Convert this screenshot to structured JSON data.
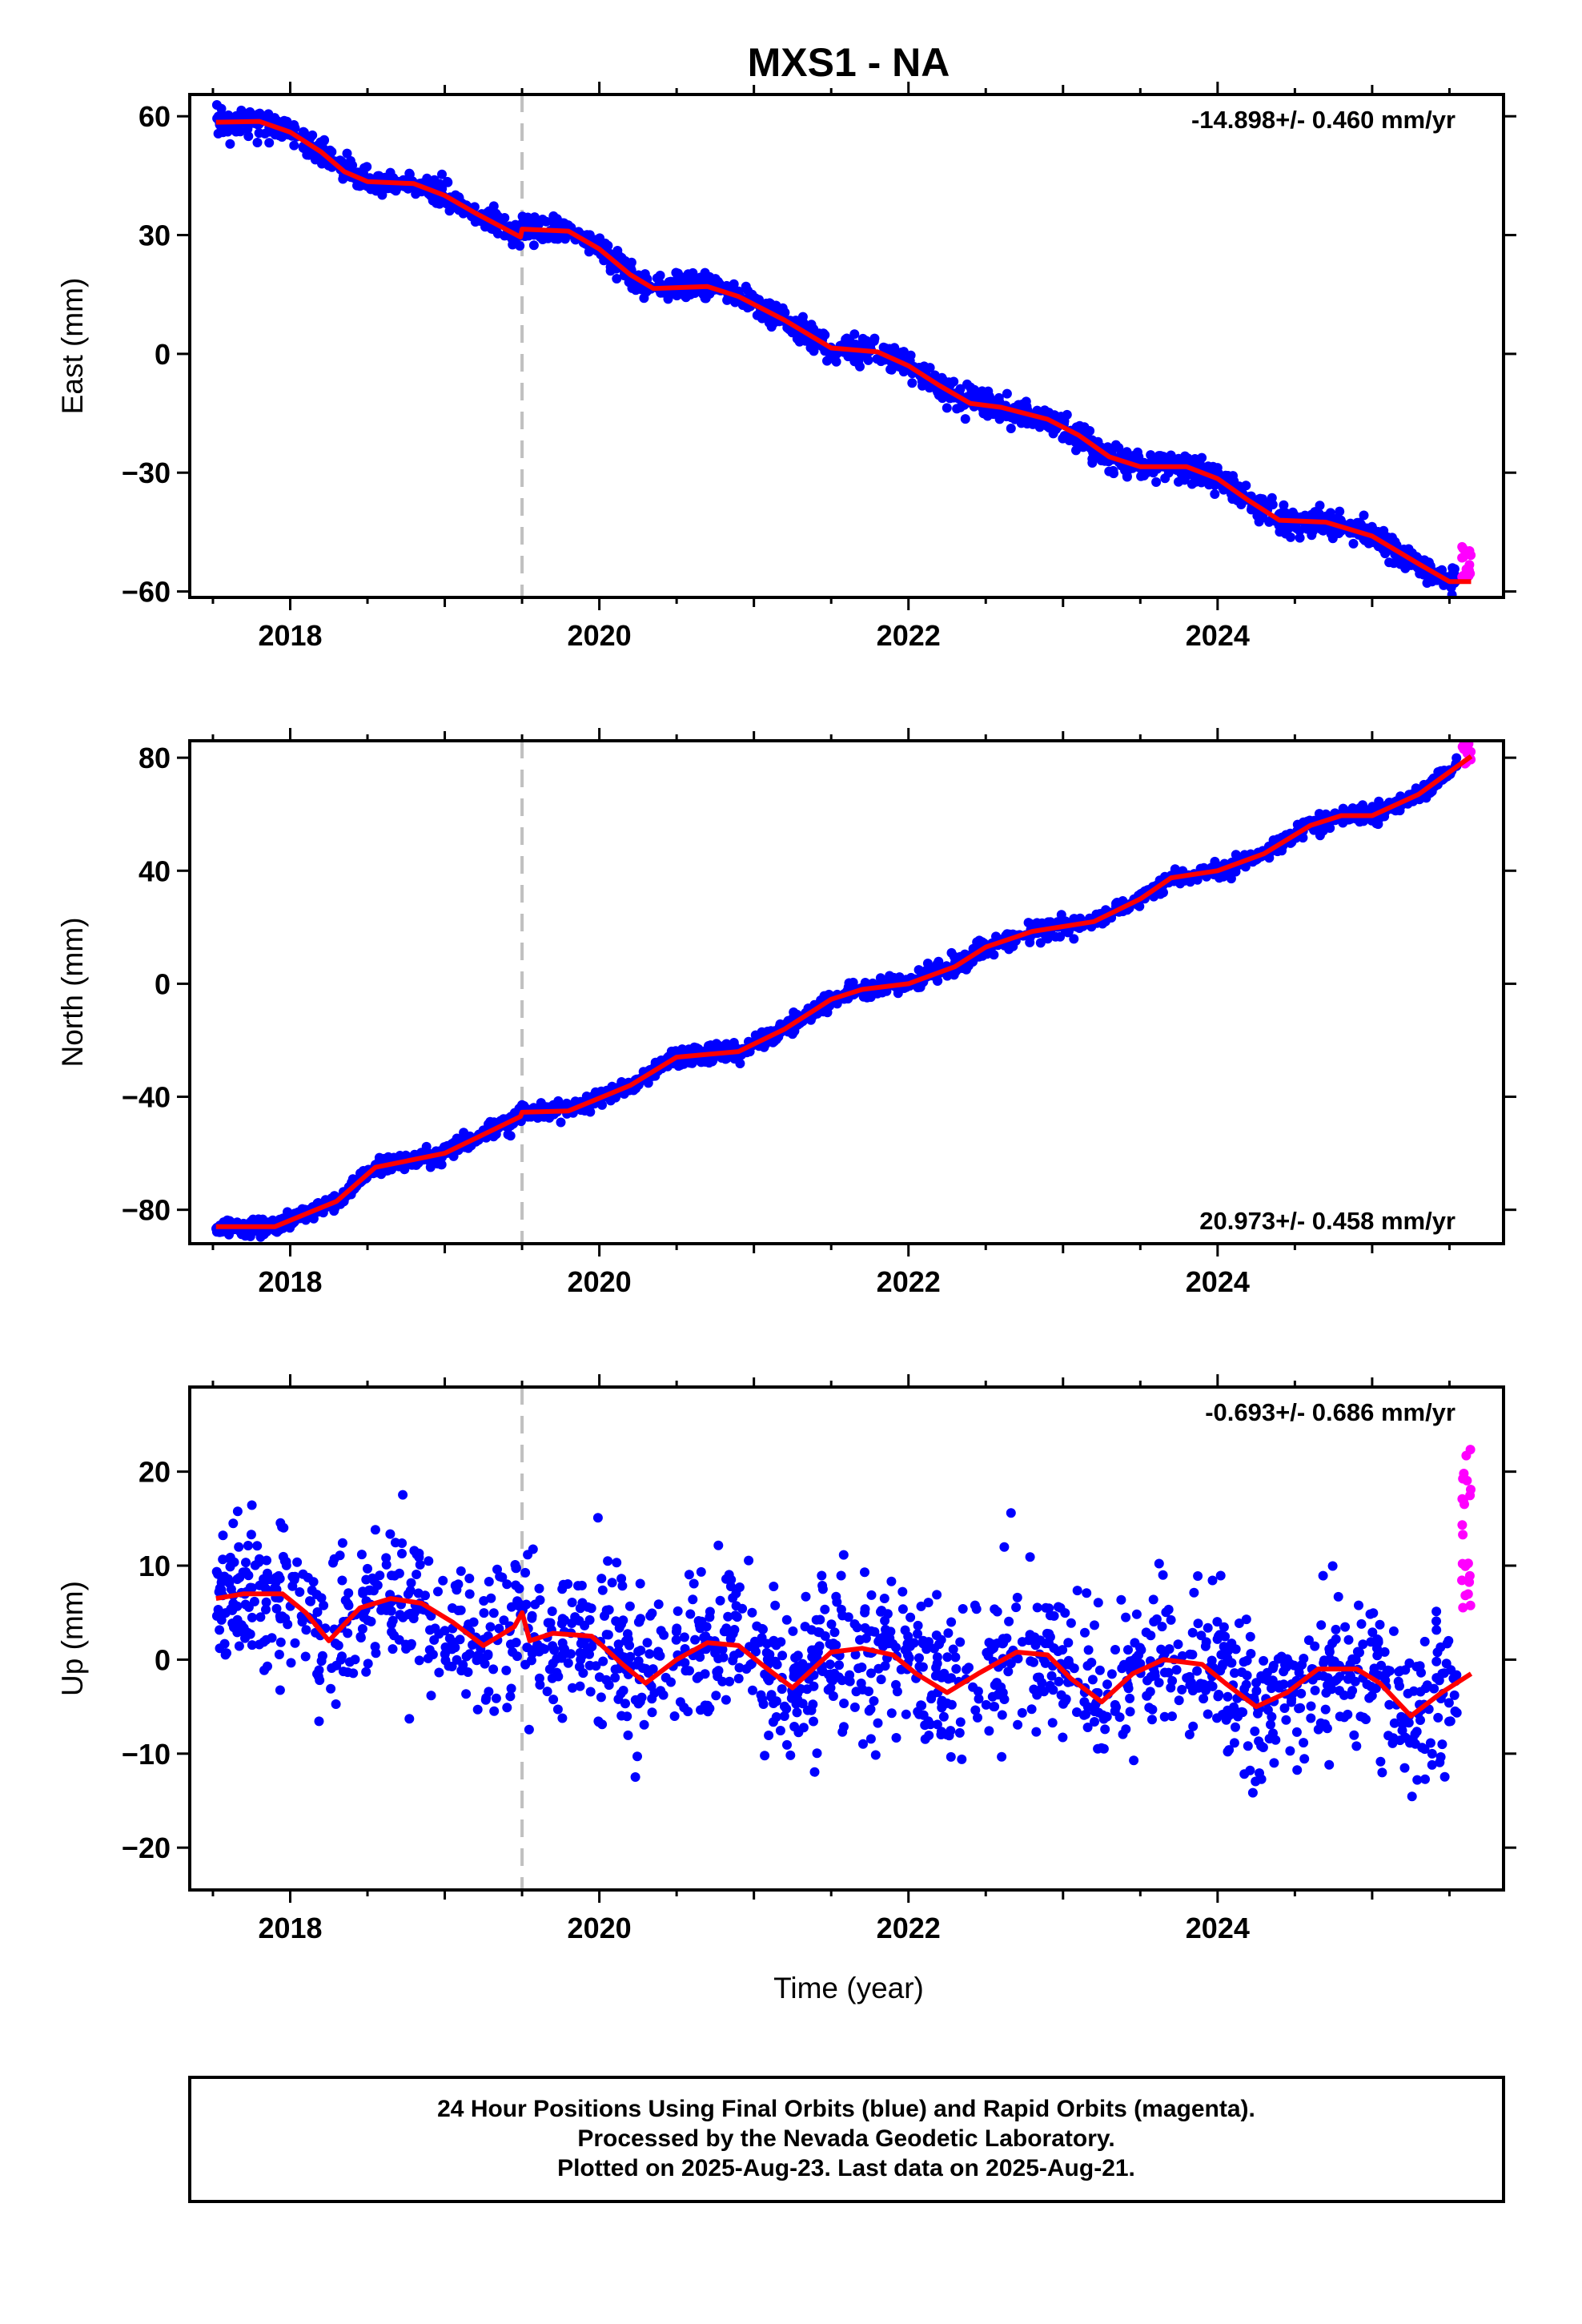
{
  "title": "MXS1 - NA",
  "footer": {
    "line1": "24 Hour Positions Using Final Orbits (blue) and Rapid Orbits (magenta).",
    "line2": "Processed by the Nevada Geodetic Laboratory.",
    "line3": "Plotted on 2025-Aug-23. Last data on 2025-Aug-21."
  },
  "colors": {
    "final": "#0000ff",
    "rapid": "#ff00ff",
    "model": "#ff0000",
    "break": "#c0c0c0",
    "frame": "#000000"
  },
  "xlabel": "Time (year)",
  "chart_data": [
    {
      "type": "scatter",
      "name": "east",
      "ylabel": "East (mm)",
      "rate_text": "-14.898+/- 0.460 mm/yr",
      "rate_position": "top-right",
      "xlim": [
        2017.35,
        2025.85
      ],
      "ylim": [
        -61.5,
        65.5
      ],
      "xticks": [
        2018,
        2020,
        2022,
        2024
      ],
      "yticks": [
        60,
        30,
        0,
        -30,
        -60
      ],
      "ytick_labels": [
        "60",
        "30",
        "0",
        "−30",
        "−60"
      ],
      "equipment_change": 2019.5,
      "data_start": 2017.52,
      "final_end": 2025.55,
      "rapid_start": 2025.58,
      "data_end": 2025.64,
      "model": [
        [
          2017.52,
          58.5
        ],
        [
          2017.8,
          58.7
        ],
        [
          2018.0,
          56.0
        ],
        [
          2018.2,
          51.0
        ],
        [
          2018.35,
          46.0
        ],
        [
          2018.5,
          43.5
        ],
        [
          2018.8,
          43.0
        ],
        [
          2019.0,
          40.0
        ],
        [
          2019.2,
          35.5
        ],
        [
          2019.49,
          29.5
        ],
        [
          2019.5,
          31.5
        ],
        [
          2019.8,
          31.0
        ],
        [
          2020.0,
          26.5
        ],
        [
          2020.2,
          20.0
        ],
        [
          2020.35,
          16.5
        ],
        [
          2020.7,
          17.0
        ],
        [
          2020.9,
          14.5
        ],
        [
          2021.2,
          8.5
        ],
        [
          2021.5,
          1.5
        ],
        [
          2021.8,
          0.5
        ],
        [
          2022.0,
          -3.0
        ],
        [
          2022.2,
          -8.0
        ],
        [
          2022.4,
          -12.5
        ],
        [
          2022.6,
          -13.5
        ],
        [
          2022.9,
          -16.5
        ],
        [
          2023.1,
          -20.5
        ],
        [
          2023.3,
          -26.0
        ],
        [
          2023.5,
          -28.5
        ],
        [
          2023.8,
          -28.5
        ],
        [
          2024.0,
          -31.5
        ],
        [
          2024.2,
          -37.0
        ],
        [
          2024.4,
          -42.0
        ],
        [
          2024.7,
          -42.5
        ],
        [
          2025.0,
          -46.0
        ],
        [
          2025.3,
          -53.0
        ],
        [
          2025.5,
          -57.5
        ],
        [
          2025.64,
          -57.5
        ]
      ],
      "scatter_noise": 1.6
    },
    {
      "type": "scatter",
      "name": "north",
      "ylabel": "North (mm)",
      "rate_text": "20.973+/- 0.458 mm/yr",
      "rate_position": "bottom-right",
      "xlim": [
        2017.35,
        2025.85
      ],
      "ylim": [
        -92,
        86
      ],
      "xticks": [
        2018,
        2020,
        2022,
        2024
      ],
      "yticks": [
        80,
        40,
        0,
        -40,
        -80
      ],
      "ytick_labels": [
        "80",
        "40",
        "0",
        "−40",
        "−80"
      ],
      "equipment_change": 2019.5,
      "data_start": 2017.52,
      "final_end": 2025.55,
      "rapid_start": 2025.58,
      "data_end": 2025.64,
      "model": [
        [
          2017.52,
          -86.0
        ],
        [
          2017.9,
          -86.0
        ],
        [
          2018.3,
          -77.0
        ],
        [
          2018.55,
          -65.0
        ],
        [
          2019.0,
          -60.0
        ],
        [
          2019.49,
          -47.0
        ],
        [
          2019.5,
          -45.5
        ],
        [
          2019.8,
          -45.0
        ],
        [
          2020.2,
          -36.0
        ],
        [
          2020.5,
          -26.0
        ],
        [
          2020.9,
          -24.0
        ],
        [
          2021.2,
          -16.0
        ],
        [
          2021.5,
          -5.5
        ],
        [
          2021.7,
          -2.0
        ],
        [
          2022.0,
          0.0
        ],
        [
          2022.3,
          6.0
        ],
        [
          2022.5,
          13.0
        ],
        [
          2022.8,
          18.5
        ],
        [
          2023.2,
          22.0
        ],
        [
          2023.5,
          30.0
        ],
        [
          2023.7,
          37.5
        ],
        [
          2024.0,
          40.0
        ],
        [
          2024.3,
          46.0
        ],
        [
          2024.6,
          56.0
        ],
        [
          2024.8,
          59.5
        ],
        [
          2025.0,
          59.5
        ],
        [
          2025.3,
          67.0
        ],
        [
          2025.64,
          80.5
        ]
      ],
      "scatter_noise": 1.5
    },
    {
      "type": "scatter",
      "name": "up",
      "ylabel": "Up (mm)",
      "rate_text": "-0.693+/- 0.686 mm/yr",
      "rate_position": "top-right",
      "xlim": [
        2017.35,
        2025.85
      ],
      "ylim": [
        -24.5,
        29.0
      ],
      "xticks": [
        2018,
        2020,
        2022,
        2024
      ],
      "yticks": [
        20,
        10,
        0,
        -10,
        -20
      ],
      "ytick_labels": [
        "20",
        "10",
        "0",
        "−10",
        "−20"
      ],
      "equipment_change": 2019.5,
      "data_start": 2017.52,
      "final_end": 2025.55,
      "rapid_start": 2025.58,
      "data_end": 2025.64,
      "model": [
        [
          2017.52,
          6.5
        ],
        [
          2017.7,
          7.0
        ],
        [
          2017.95,
          7.0
        ],
        [
          2018.1,
          5.0
        ],
        [
          2018.25,
          2.0
        ],
        [
          2018.45,
          5.5
        ],
        [
          2018.65,
          6.5
        ],
        [
          2018.85,
          6.0
        ],
        [
          2019.05,
          4.0
        ],
        [
          2019.25,
          1.5
        ],
        [
          2019.45,
          3.5
        ],
        [
          2019.5,
          5.0
        ],
        [
          2019.55,
          2.0
        ],
        [
          2019.7,
          2.8
        ],
        [
          2019.95,
          2.5
        ],
        [
          2020.15,
          -0.5
        ],
        [
          2020.3,
          -2.5
        ],
        [
          2020.5,
          0.0
        ],
        [
          2020.7,
          1.8
        ],
        [
          2020.9,
          1.5
        ],
        [
          2021.05,
          -0.5
        ],
        [
          2021.25,
          -3.0
        ],
        [
          2021.5,
          0.8
        ],
        [
          2021.7,
          1.2
        ],
        [
          2021.9,
          0.5
        ],
        [
          2022.05,
          -1.5
        ],
        [
          2022.25,
          -3.5
        ],
        [
          2022.45,
          -1.5
        ],
        [
          2022.7,
          0.8
        ],
        [
          2022.9,
          0.5
        ],
        [
          2023.05,
          -2.0
        ],
        [
          2023.25,
          -4.5
        ],
        [
          2023.45,
          -1.5
        ],
        [
          2023.65,
          0.0
        ],
        [
          2023.9,
          -0.5
        ],
        [
          2024.05,
          -2.5
        ],
        [
          2024.25,
          -5.0
        ],
        [
          2024.45,
          -3.5
        ],
        [
          2024.65,
          -1.0
        ],
        [
          2024.9,
          -1.0
        ],
        [
          2025.05,
          -2.5
        ],
        [
          2025.25,
          -6.0
        ],
        [
          2025.45,
          -3.5
        ],
        [
          2025.64,
          -1.5
        ]
      ],
      "scatter_noise": 4.0
    }
  ]
}
